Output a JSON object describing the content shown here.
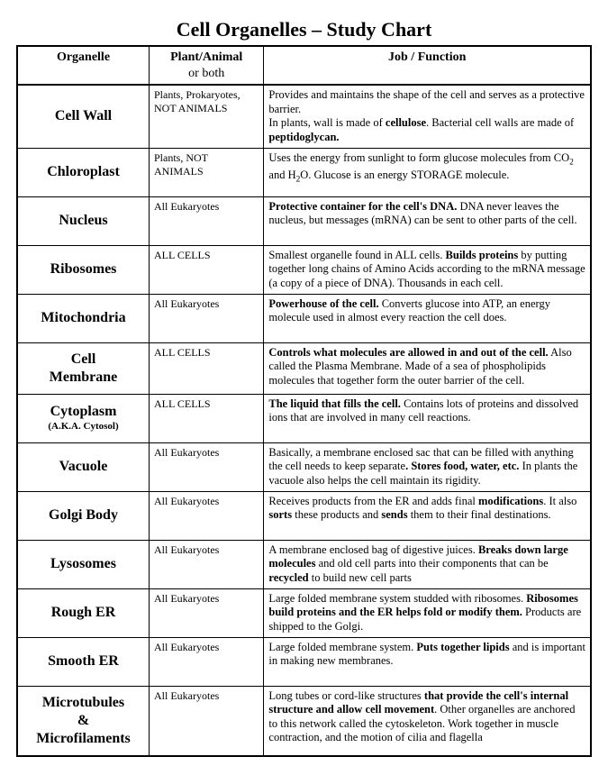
{
  "title": "Cell Organelles – Study Chart",
  "columns": {
    "organelle": "Organelle",
    "plant_animal": "Plant/Animal",
    "plant_animal_sub": "or both",
    "function": "Job / Function"
  },
  "rows": [
    {
      "organelle": "Cell Wall",
      "pa": "Plants, Prokaryotes, NOT ANIMALS",
      "fn": "Provides and maintains the shape of the cell and serves as a protective barrier.<br>In plants, wall is made of <span class=\"b\">cellulose</span>.  Bacterial cell walls are made of <span class=\"b\">peptidoglycan.</span>"
    },
    {
      "organelle": "Chloroplast",
      "pa": "Plants, NOT ANIMALS",
      "fn": "Uses the energy from sunlight to form glucose molecules from CO<sub>2</sub> and H<sub>2</sub>O.  Glucose is an energy STORAGE molecule."
    },
    {
      "organelle": "Nucleus",
      "pa": "All Eukaryotes",
      "fn": "<span class=\"b\">Protective container for the cell's DNA.</span>  DNA never leaves the nucleus, but messages (mRNA) can be sent to other parts of the cell."
    },
    {
      "organelle": "Ribosomes",
      "pa": "ALL CELLS",
      "fn": "Smallest organelle found in ALL cells.  <span class=\"b\">Builds proteins</span> by putting together long chains of Amino Acids according to the mRNA message (a copy of a piece of DNA).  Thousands in each cell."
    },
    {
      "organelle": "Mitochondria",
      "pa": "All Eukaryotes",
      "fn": "<span class=\"b\">Powerhouse of the cell.</span>  Converts glucose into ATP, an energy molecule used in almost every reaction the cell does."
    },
    {
      "organelle": "Cell Membrane",
      "pa": "ALL CELLS",
      "fn": "<span class=\"b\">Controls what molecules are allowed  in and out of the cell.</span>  Also called the Plasma Membrane.  Made of a sea of phospholipids molecules that together form the outer barrier of the cell."
    },
    {
      "organelle": "Cytoplasm",
      "organelle_sub": "(A.K.A.  Cytosol)",
      "pa": "ALL CELLS",
      "fn": "<span class=\"b\">The liquid that fills the cell.</span>  Contains lots of proteins and dissolved ions that are involved in many cell reactions."
    },
    {
      "organelle": "Vacuole",
      "pa": "All Eukaryotes",
      "fn": "Basically, a membrane enclosed sac that can be filled with anything the cell needs to keep separate<span class=\"b\">.  Stores food, water, etc.</span>  In plants the vacuole also helps the cell maintain its rigidity."
    },
    {
      "organelle": "Golgi Body",
      "pa": "All Eukaryotes",
      "fn": "Receives products from the ER and adds final <span class=\"b\">modifications</span>.  It also <span class=\"b\">sorts</span> these products and <span class=\"b\">sends</span> them to their final destinations."
    },
    {
      "organelle": "Lysosomes",
      "pa": "All Eukaryotes",
      "fn": "A membrane enclosed bag of digestive juices.  <span class=\"b\">Breaks down large molecules</span> and old cell parts into their components that can be <span class=\"b\">recycled</span> to build new cell parts"
    },
    {
      "organelle": "Rough ER",
      "pa": "All Eukaryotes",
      "fn": "Large folded membrane system studded with ribosomes.  <span class=\"b\">Ribosomes build proteins and the ER helps fold or modify them.</span>  Products are shipped to the Golgi."
    },
    {
      "organelle": "Smooth ER",
      "pa": "All Eukaryotes",
      "fn": "Large folded membrane system.  <span class=\"b\">Puts together lipids</span> and is important in making new membranes."
    },
    {
      "organelle": "Microtubules & Microfilaments",
      "pa": "All Eukaryotes",
      "fn": "Long tubes or cord-like structures <span class=\"b\">that provide the cell's internal structure and allow cell movement</span>.  Other organelles are anchored to this network called the cytoskeleton.  Work together in muscle contraction, and the motion of cilia and flagella"
    }
  ]
}
